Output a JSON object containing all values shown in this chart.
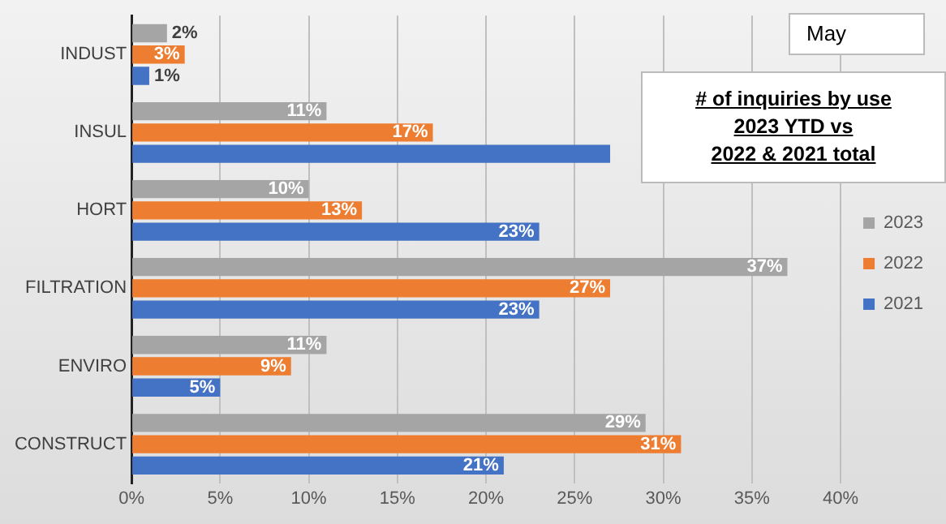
{
  "chart_data": {
    "type": "bar",
    "orientation": "horizontal",
    "title": "# of inquiries by use\n2023 YTD vs\n2022 & 2021 total",
    "annotations": [
      "May"
    ],
    "categories": [
      "INDUST",
      "INSUL",
      "HORT",
      "FILTRATION",
      "ENVIRO",
      "CONSTRUCT"
    ],
    "series": [
      {
        "name": "2023",
        "color": "#a5a5a5",
        "values": [
          2,
          11,
          10,
          37,
          11,
          29
        ],
        "value_labels": [
          "2%",
          "11%",
          "10%",
          "37%",
          "11%",
          "29%"
        ]
      },
      {
        "name": "2022",
        "color": "#ed7d31",
        "values": [
          3,
          17,
          13,
          27,
          9,
          31
        ],
        "value_labels": [
          "3%",
          "17%",
          "13%",
          "27%",
          "9%",
          "31%"
        ]
      },
      {
        "name": "2021",
        "color": "#4472c4",
        "values": [
          1,
          27,
          23,
          23,
          5,
          21
        ],
        "value_labels": [
          "1%",
          null,
          "23%",
          "23%",
          "5%",
          "21%"
        ]
      }
    ],
    "xlim": [
      0,
      40
    ],
    "xticks": [
      {
        "value": 0,
        "label": "0%"
      },
      {
        "value": 5,
        "label": "5%"
      },
      {
        "value": 10,
        "label": "10%"
      },
      {
        "value": 15,
        "label": "15%"
      },
      {
        "value": 20,
        "label": "20%"
      },
      {
        "value": 25,
        "label": "25%"
      },
      {
        "value": 30,
        "label": "30%"
      },
      {
        "value": 35,
        "label": "35%"
      },
      {
        "value": 40,
        "label": "40%"
      }
    ],
    "grid": "x",
    "legend": "right"
  }
}
